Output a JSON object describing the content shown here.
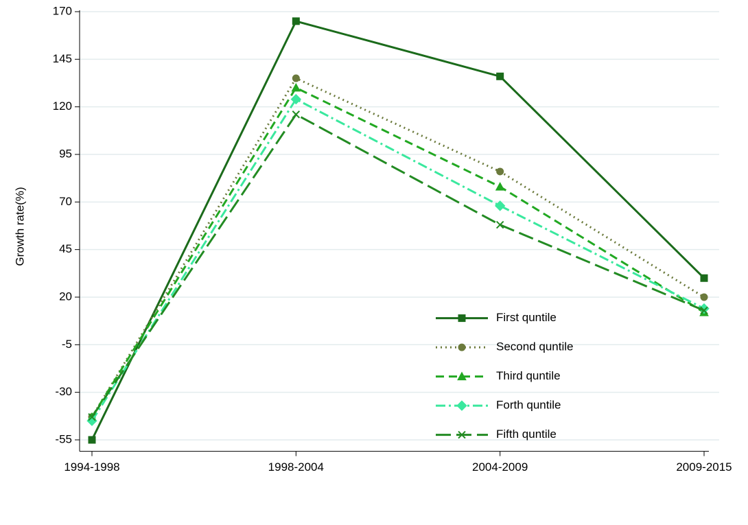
{
  "chart_data": {
    "type": "line",
    "y_label": "Growth rate(%)",
    "categories": [
      "1994-1998",
      "1998-2004",
      "2004-2009",
      "2009-2015"
    ],
    "series": [
      {
        "name": "First quntile",
        "color": "#1b6b1b",
        "marker": "square",
        "dash": "solid",
        "values": [
          -55,
          165,
          136,
          30
        ]
      },
      {
        "name": "Second quntile",
        "color": "#6b7a3c",
        "marker": "circle",
        "dash": "dot",
        "values": [
          -43,
          135,
          86,
          20
        ]
      },
      {
        "name": "Third quntile",
        "color": "#22a822",
        "marker": "triangle",
        "dash": "dash",
        "values": [
          -43,
          130,
          78,
          12
        ]
      },
      {
        "name": "Forth quntile",
        "color": "#3ae89e",
        "marker": "diamond",
        "dash": "dashdot",
        "values": [
          -45,
          124,
          68,
          14
        ]
      },
      {
        "name": "Fifth quntile",
        "color": "#238b23",
        "marker": "x",
        "dash": "longdash",
        "values": [
          -43,
          116,
          58,
          13
        ]
      }
    ],
    "ylim": [
      -61,
      170
    ],
    "yticks": [
      -55,
      -30,
      -5,
      20,
      45,
      70,
      95,
      120,
      145,
      170
    ],
    "grid": true,
    "legend": "lower right"
  }
}
